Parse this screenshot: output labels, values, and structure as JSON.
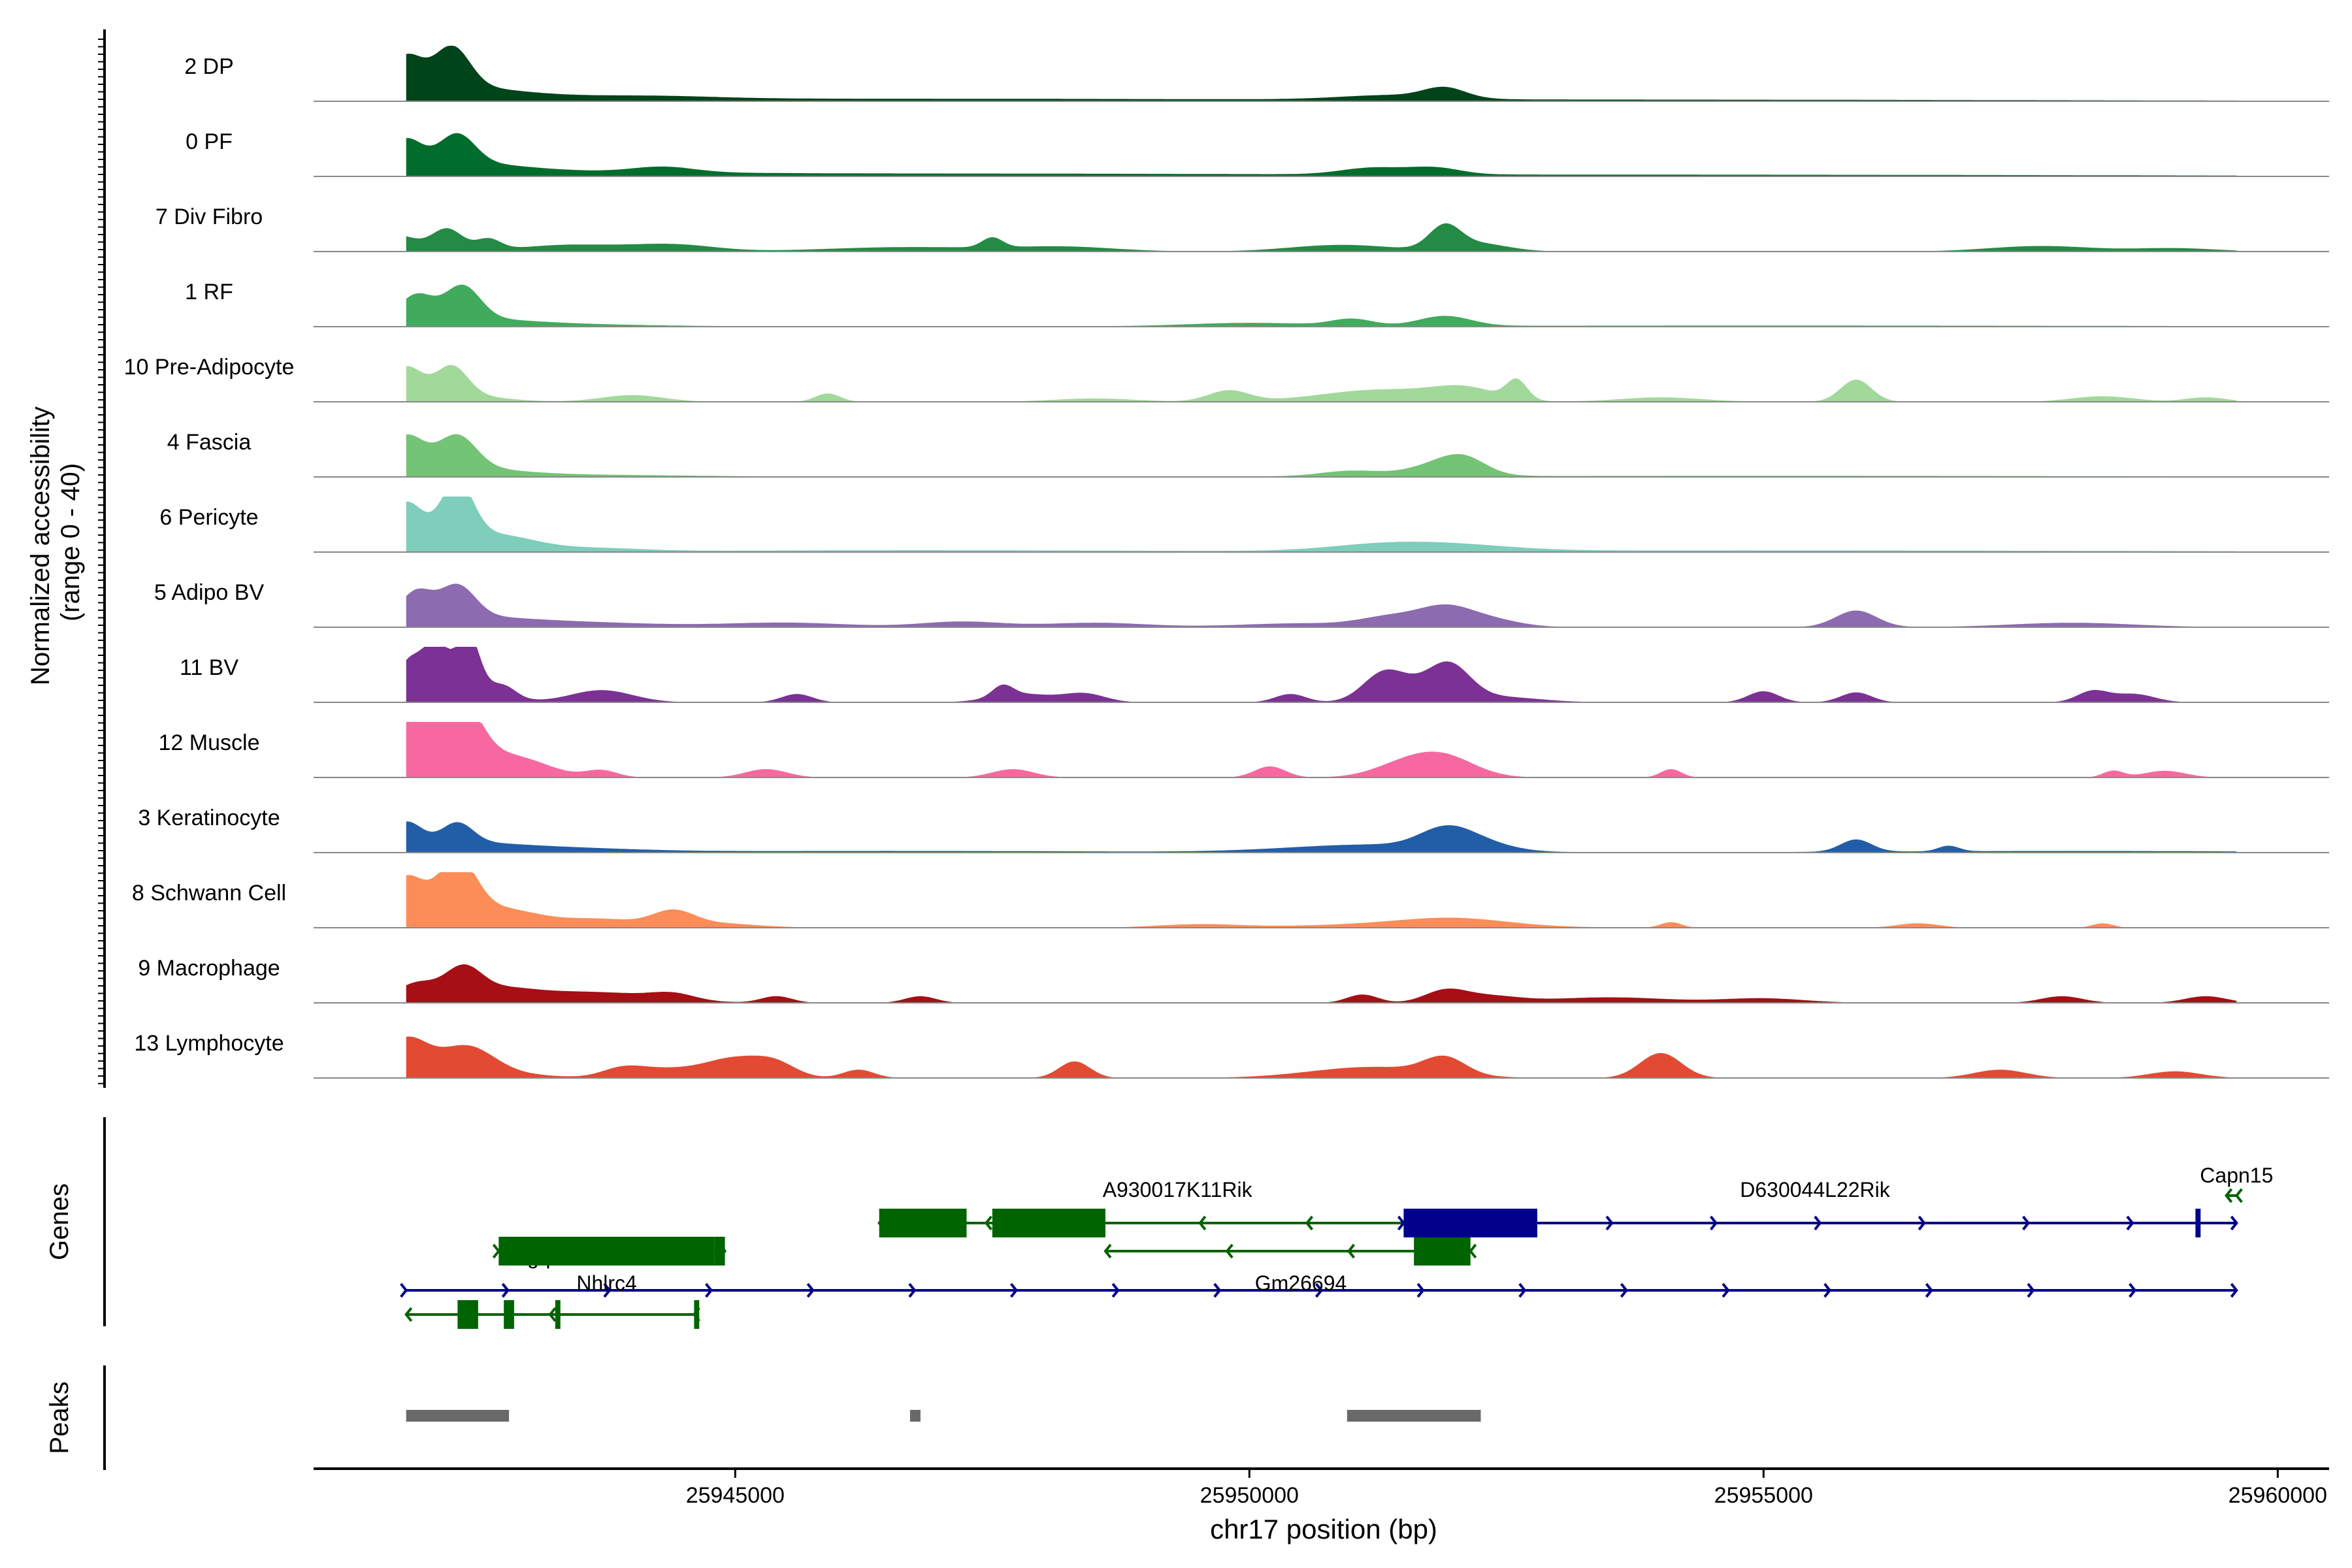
{
  "chart_data": {
    "type": "genome-coverage-track",
    "chromosome": "chr17",
    "xlim": [
      25940900,
      25960500
    ],
    "xlabel": "chr17 position (bp)",
    "x_ticks": [
      25945000,
      25950000,
      25955000,
      25960000
    ],
    "x_tick_labels": [
      "25945000",
      "25950000",
      "25955000",
      "25960000"
    ],
    "coverage_ylabel_line1": "Normalized accessibility",
    "coverage_ylabel_line2": "(range 0 - 40)",
    "coverage_range": [
      0,
      40
    ],
    "genes_ylabel": "Genes",
    "peaks_ylabel": "Peaks",
    "tracks": [
      {
        "name": "2 DP",
        "color": "#00441b",
        "peaks": [
          [
            25941800,
            160,
            0.55
          ],
          [
            25942250,
            170,
            0.7
          ],
          [
            25942050,
            700,
            0.25
          ],
          [
            25942900,
            1500,
            0.05
          ],
          [
            25944200,
            600,
            0.04
          ],
          [
            25946500,
            2500,
            0.03
          ],
          [
            25951400,
            500,
            0.08
          ],
          [
            25951900,
            200,
            0.18
          ],
          [
            25953000,
            5000,
            0.03
          ]
        ]
      },
      {
        "name": "0 PF",
        "color": "#006d2c",
        "peaks": [
          [
            25941800,
            150,
            0.42
          ],
          [
            25942300,
            170,
            0.5
          ],
          [
            25942050,
            700,
            0.22
          ],
          [
            25943000,
            1500,
            0.06
          ],
          [
            25944300,
            300,
            0.1
          ],
          [
            25946500,
            3000,
            0.04
          ],
          [
            25951200,
            300,
            0.12
          ],
          [
            25951800,
            250,
            0.12
          ],
          [
            25954000,
            5000,
            0.03
          ]
        ]
      },
      {
        "name": "7 Div Fibro",
        "color": "#238b45",
        "peaks": [
          [
            25941700,
            200,
            0.3
          ],
          [
            25942200,
            150,
            0.4
          ],
          [
            25942600,
            120,
            0.2
          ],
          [
            25943400,
            500,
            0.12
          ],
          [
            25944400,
            400,
            0.12
          ],
          [
            25946700,
            800,
            0.08
          ],
          [
            25947500,
            100,
            0.18
          ],
          [
            25948200,
            500,
            0.08
          ],
          [
            25950900,
            500,
            0.12
          ],
          [
            25951900,
            150,
            0.4
          ],
          [
            25952200,
            300,
            0.15
          ],
          [
            25957700,
            500,
            0.1
          ],
          [
            25959000,
            400,
            0.06
          ]
        ]
      },
      {
        "name": "1 RF",
        "color": "#41ab5d",
        "peaks": [
          [
            25941900,
            160,
            0.42
          ],
          [
            25942350,
            170,
            0.58
          ],
          [
            25942100,
            700,
            0.15
          ],
          [
            25943200,
            1000,
            0.04
          ],
          [
            25950000,
            600,
            0.06
          ],
          [
            25951000,
            200,
            0.12
          ],
          [
            25951900,
            250,
            0.18
          ],
          [
            25955000,
            4000,
            0.02
          ]
        ]
      },
      {
        "name": "10 Pre-Adipocyte",
        "color": "#a1d99b",
        "peaks": [
          [
            25941800,
            150,
            0.45
          ],
          [
            25942250,
            150,
            0.48
          ],
          [
            25942000,
            500,
            0.2
          ],
          [
            25944000,
            300,
            0.12
          ],
          [
            25945900,
            120,
            0.15
          ],
          [
            25948500,
            400,
            0.06
          ],
          [
            25949800,
            200,
            0.2
          ],
          [
            25951300,
            600,
            0.22
          ],
          [
            25952100,
            300,
            0.2
          ],
          [
            25952600,
            100,
            0.35
          ],
          [
            25954000,
            400,
            0.08
          ],
          [
            25955900,
            150,
            0.4
          ],
          [
            25958300,
            300,
            0.1
          ],
          [
            25959300,
            200,
            0.08
          ]
        ]
      },
      {
        "name": "4 Fascia",
        "color": "#74c476",
        "peaks": [
          [
            25941800,
            170,
            0.55
          ],
          [
            25942300,
            180,
            0.55
          ],
          [
            25942050,
            600,
            0.2
          ],
          [
            25943300,
            1200,
            0.04
          ],
          [
            25951000,
            300,
            0.1
          ],
          [
            25951900,
            300,
            0.25
          ],
          [
            25952100,
            200,
            0.18
          ],
          [
            25955000,
            4000,
            0.02
          ]
        ]
      },
      {
        "name": "6 Pericyte",
        "color": "#7fcdbb",
        "peaks": [
          [
            25941800,
            150,
            0.58
          ],
          [
            25942300,
            150,
            0.95
          ],
          [
            25942050,
            600,
            0.35
          ],
          [
            25942800,
            300,
            0.12
          ],
          [
            25943600,
            500,
            0.06
          ],
          [
            25946500,
            2000,
            0.03
          ],
          [
            25951200,
            500,
            0.08
          ],
          [
            25951900,
            600,
            0.12
          ],
          [
            25954800,
            4000,
            0.03
          ]
        ]
      },
      {
        "name": "5 Adipo BV",
        "color": "#8c6bb1",
        "peaks": [
          [
            25941900,
            150,
            0.45
          ],
          [
            25942300,
            170,
            0.55
          ],
          [
            25942100,
            700,
            0.2
          ],
          [
            25943500,
            800,
            0.08
          ],
          [
            25945500,
            600,
            0.08
          ],
          [
            25947200,
            400,
            0.1
          ],
          [
            25948500,
            500,
            0.08
          ],
          [
            25950500,
            600,
            0.07
          ],
          [
            25951400,
            300,
            0.18
          ],
          [
            25951900,
            250,
            0.3
          ],
          [
            25952300,
            300,
            0.15
          ],
          [
            25955900,
            200,
            0.3
          ],
          [
            25958000,
            600,
            0.08
          ]
        ]
      },
      {
        "name": "11 BV",
        "color": "#7b3294",
        "peaks": [
          [
            25941850,
            140,
            0.55
          ],
          [
            25942100,
            100,
            0.7
          ],
          [
            25942400,
            110,
            1.0
          ],
          [
            25942150,
            400,
            0.35
          ],
          [
            25942750,
            120,
            0.2
          ],
          [
            25943700,
            300,
            0.22
          ],
          [
            25945600,
            150,
            0.15
          ],
          [
            25947600,
            100,
            0.2
          ],
          [
            25947800,
            300,
            0.15
          ],
          [
            25948400,
            200,
            0.15
          ],
          [
            25950400,
            150,
            0.15
          ],
          [
            25951300,
            200,
            0.42
          ],
          [
            25951600,
            300,
            0.25
          ],
          [
            25951950,
            200,
            0.55
          ],
          [
            25952400,
            400,
            0.1
          ],
          [
            25955000,
            150,
            0.2
          ],
          [
            25955900,
            150,
            0.18
          ],
          [
            25958200,
            150,
            0.2
          ],
          [
            25958600,
            200,
            0.15
          ]
        ]
      },
      {
        "name": "12 Muscle",
        "color": "#f768a1",
        "peaks": [
          [
            25941750,
            160,
            0.6
          ],
          [
            25942000,
            140,
            0.85
          ],
          [
            25942350,
            180,
            0.95
          ],
          [
            25942150,
            600,
            0.4
          ],
          [
            25942900,
            300,
            0.2
          ],
          [
            25943700,
            150,
            0.12
          ],
          [
            25945300,
            200,
            0.15
          ],
          [
            25947700,
            200,
            0.15
          ],
          [
            25950200,
            150,
            0.2
          ],
          [
            25951500,
            300,
            0.22
          ],
          [
            25951900,
            300,
            0.35
          ],
          [
            25954100,
            100,
            0.15
          ],
          [
            25958400,
            100,
            0.12
          ],
          [
            25958900,
            200,
            0.12
          ]
        ]
      },
      {
        "name": "3 Keratinocyte",
        "color": "#225ea8",
        "peaks": [
          [
            25941800,
            150,
            0.4
          ],
          [
            25942300,
            150,
            0.35
          ],
          [
            25942100,
            600,
            0.15
          ],
          [
            25943100,
            800,
            0.08
          ],
          [
            25946500,
            2500,
            0.03
          ],
          [
            25951200,
            800,
            0.14
          ],
          [
            25951900,
            250,
            0.3
          ],
          [
            25952200,
            300,
            0.15
          ],
          [
            25955900,
            150,
            0.22
          ],
          [
            25956800,
            100,
            0.1
          ],
          [
            25958000,
            2000,
            0.03
          ]
        ]
      },
      {
        "name": "8 Schwann Cell",
        "color": "#fc8d59",
        "peaks": [
          [
            25941800,
            170,
            0.65
          ],
          [
            25942300,
            180,
            0.95
          ],
          [
            25942100,
            700,
            0.3
          ],
          [
            25942800,
            300,
            0.15
          ],
          [
            25943700,
            400,
            0.14
          ],
          [
            25944400,
            200,
            0.25
          ],
          [
            25944800,
            400,
            0.08
          ],
          [
            25949500,
            400,
            0.06
          ],
          [
            25951500,
            900,
            0.07
          ],
          [
            25952000,
            500,
            0.12
          ],
          [
            25954100,
            100,
            0.1
          ],
          [
            25956500,
            200,
            0.08
          ],
          [
            25958300,
            100,
            0.08
          ]
        ]
      },
      {
        "name": "9 Macrophage",
        "color": "#a50f15",
        "peaks": [
          [
            25941900,
            200,
            0.35
          ],
          [
            25942350,
            180,
            0.55
          ],
          [
            25942700,
            300,
            0.2
          ],
          [
            25943200,
            400,
            0.12
          ],
          [
            25943900,
            500,
            0.15
          ],
          [
            25944400,
            200,
            0.1
          ],
          [
            25945400,
            150,
            0.12
          ],
          [
            25946800,
            150,
            0.12
          ],
          [
            25951100,
            150,
            0.15
          ],
          [
            25951900,
            200,
            0.2
          ],
          [
            25952300,
            300,
            0.12
          ],
          [
            25953500,
            600,
            0.1
          ],
          [
            25955000,
            400,
            0.08
          ],
          [
            25957900,
            200,
            0.12
          ],
          [
            25959300,
            200,
            0.12
          ]
        ]
      },
      {
        "name": "13 Lymphocyte",
        "color": "#e34a33",
        "peaks": [
          [
            25941800,
            200,
            0.55
          ],
          [
            25942400,
            250,
            0.4
          ],
          [
            25942150,
            600,
            0.2
          ],
          [
            25943900,
            200,
            0.15
          ],
          [
            25944300,
            300,
            0.15
          ],
          [
            25945000,
            300,
            0.35
          ],
          [
            25945400,
            200,
            0.2
          ],
          [
            25946200,
            150,
            0.15
          ],
          [
            25948300,
            150,
            0.3
          ],
          [
            25951200,
            600,
            0.2
          ],
          [
            25951900,
            200,
            0.3
          ],
          [
            25954000,
            200,
            0.45
          ],
          [
            25957300,
            250,
            0.15
          ],
          [
            25959000,
            250,
            0.12
          ]
        ]
      }
    ],
    "genes": [
      {
        "name": "Pigq",
        "strand": "+",
        "row": 3,
        "color": "#00008b",
        "start": 25941800,
        "end": 25959600,
        "exons": [],
        "label_x": 25943000
      },
      {
        "name": "Nhlrc4",
        "strand": "+",
        "row": 2,
        "color": "#006400",
        "start": 25942700,
        "end": 25944900,
        "exons": [
          [
            25942700,
            25944800
          ],
          [
            25944150,
            25944300
          ],
          [
            25944600,
            25944700
          ],
          [
            25944800,
            25944900
          ]
        ],
        "label_x": 25943750
      },
      {
        "name": "A930017K11Rik",
        "strand": "-",
        "row": 1,
        "color": "#006400",
        "start": 25946400,
        "end": 25951600,
        "exons": [
          [
            25946400,
            25947250
          ],
          [
            25947500,
            25948600
          ]
        ],
        "label_x": 25949300
      },
      {
        "name": "Gm26694",
        "strand": "-",
        "row": 2,
        "color": "#006400",
        "start": 25948600,
        "end": 25952150,
        "exons": [
          [
            25951600,
            25952150
          ]
        ],
        "label_x": 25950500
      },
      {
        "name": "D630044L22Rik",
        "strand": "+",
        "row": 1,
        "color": "#00008b",
        "start": 25951500,
        "end": 25959600,
        "exons": [
          [
            25951500,
            25952800
          ],
          [
            25959200,
            25959250
          ]
        ],
        "label_x": 25955500
      },
      {
        "name": "Capn15",
        "strand": "-",
        "row": 0,
        "color": "#006400",
        "start": 25959500,
        "end": 25959600,
        "exons": [],
        "label_x": 25959600
      },
      {
        "name": "",
        "strand": "-",
        "row": 4,
        "color": "#006400",
        "start": 25941800,
        "end": 25944600,
        "exons": [
          [
            25942300,
            25942500
          ],
          [
            25942750,
            25942850
          ],
          [
            25943250,
            25943300
          ],
          [
            25944600,
            25944650
          ]
        ],
        "label_x": null
      }
    ],
    "peaks_track": [
      [
        25941800,
        25942800
      ],
      [
        25946700,
        25946800
      ],
      [
        25950950,
        25952250
      ]
    ]
  }
}
